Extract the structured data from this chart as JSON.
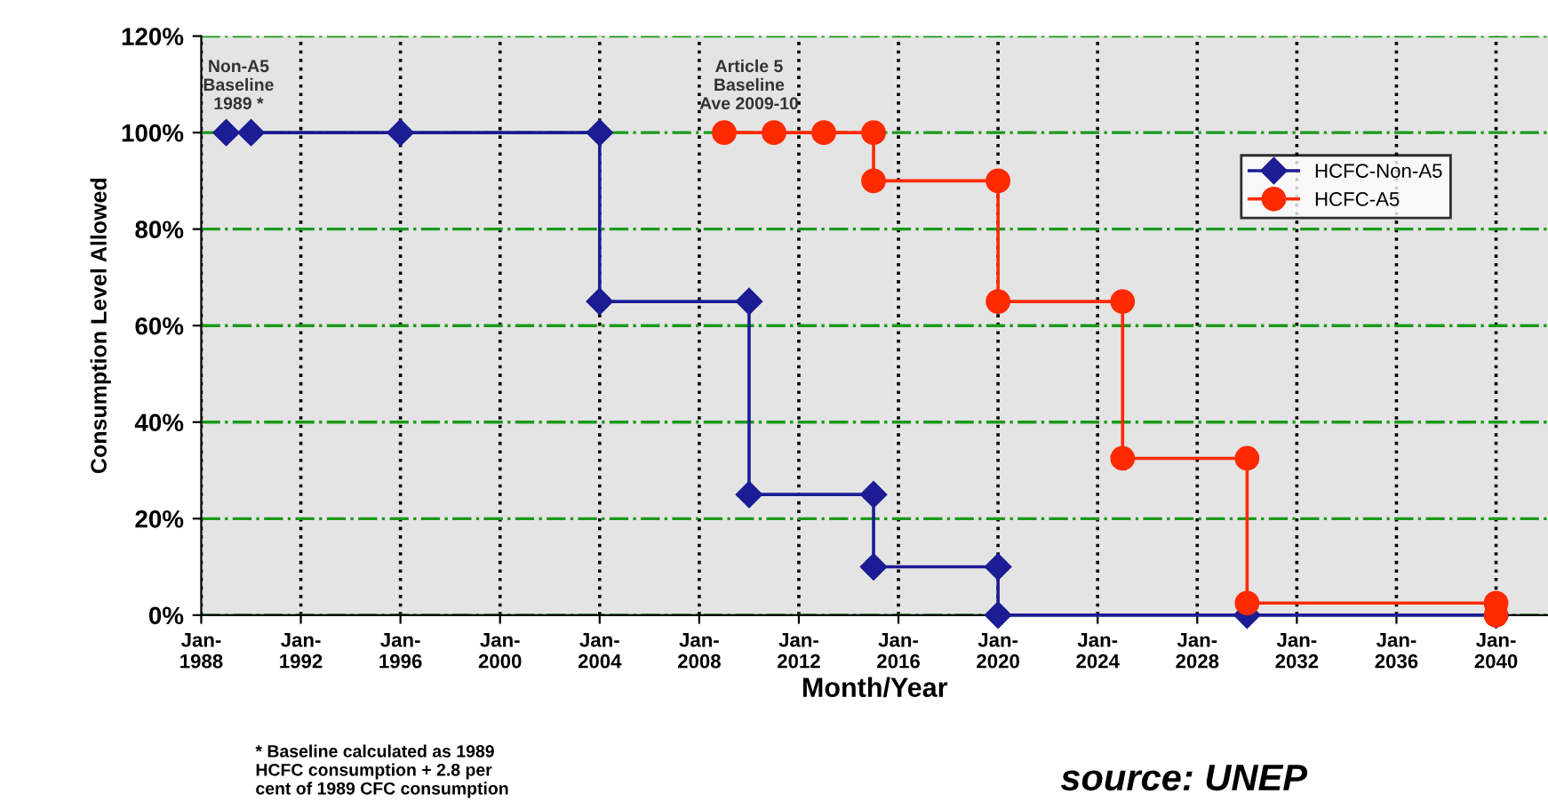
{
  "chart_data": {
    "type": "line",
    "xlabel": "Month/Year",
    "ylabel": "Consumption Level Allowed",
    "series": [
      {
        "name": "HCFC-Non-A5",
        "color": "#1c1c94",
        "marker": "diamond",
        "x": [
          "1989-01",
          "1990-01",
          "1996-01",
          "2004-01",
          "2004-01",
          "2010-01",
          "2010-01",
          "2015-01",
          "2015-01",
          "2020-01",
          "2020-01",
          "2030-01",
          "2040-01"
        ],
        "values": [
          100,
          100,
          100,
          100,
          65,
          65,
          25,
          25,
          10,
          10,
          0,
          0,
          0
        ]
      },
      {
        "name": "HCFC-A5",
        "color": "#ff2a00",
        "marker": "circle",
        "x": [
          "2009-01",
          "2011-01",
          "2013-01",
          "2015-01",
          "2015-01",
          "2020-01",
          "2020-01",
          "2025-01",
          "2025-01",
          "2030-01",
          "2030-01",
          "2040-01",
          "2040-01"
        ],
        "values": [
          100,
          100,
          100,
          100,
          90,
          90,
          65,
          65,
          32.5,
          32.5,
          2.5,
          2.5,
          0
        ]
      }
    ],
    "xlim": [
      "1988-01",
      "2042-02"
    ],
    "xticks": [
      {
        "value": "1988-01",
        "label": "Jan-\n1988"
      },
      {
        "value": "1992-01",
        "label": "Jan-\n1992"
      },
      {
        "value": "1996-01",
        "label": "Jan-\n1996"
      },
      {
        "value": "2000-01",
        "label": "Jan-\n2000"
      },
      {
        "value": "2004-01",
        "label": "Jan-\n2004"
      },
      {
        "value": "2008-01",
        "label": "Jan-\n2008"
      },
      {
        "value": "2012-01",
        "label": "Jan-\n2012"
      },
      {
        "value": "2016-01",
        "label": "Jan-\n2016"
      },
      {
        "value": "2020-01",
        "label": "Jan-\n2020"
      },
      {
        "value": "2024-01",
        "label": "Jan-\n2024"
      },
      {
        "value": "2028-01",
        "label": "Jan-\n2028"
      },
      {
        "value": "2032-01",
        "label": "Jan-\n2032"
      },
      {
        "value": "2036-01",
        "label": "Jan-\n2036"
      },
      {
        "value": "2040-01",
        "label": "Jan-\n2040"
      }
    ],
    "ylim": [
      0,
      120
    ],
    "yticks": [
      {
        "value": 0,
        "label": "0%"
      },
      {
        "value": 20,
        "label": "20%"
      },
      {
        "value": 40,
        "label": "40%"
      },
      {
        "value": 60,
        "label": "60%"
      },
      {
        "value": 80,
        "label": "80%"
      },
      {
        "value": 100,
        "label": "100%"
      },
      {
        "value": 120,
        "label": "120%"
      }
    ],
    "grid": true,
    "legend": "right",
    "line_style": "solid",
    "annotations": [
      {
        "text": "Non-A5\nBaseline\n1989 *",
        "x": "1989-07",
        "y": 100
      },
      {
        "text": "Article 5\nBaseline\nAve 2009-10",
        "x": "2010-01",
        "y": 100
      },
      "* Baseline calculated as 1989\nHCFC consumption + 2.8 per\ncent of 1989 CFC consumption",
      "source: UNEP"
    ]
  }
}
